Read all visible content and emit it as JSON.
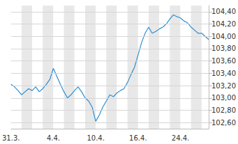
{
  "chart_data": {
    "type": "line",
    "color": "#2a8fd4",
    "grid": true,
    "categories": [
      "31.3.",
      null,
      null,
      null,
      null,
      null,
      null,
      null,
      null,
      null,
      null,
      null,
      "4.4.",
      null,
      null,
      null,
      null,
      null,
      null,
      null,
      null,
      null,
      null,
      null,
      "10.4.",
      null,
      null,
      null,
      null,
      null,
      null,
      null,
      null,
      null,
      null,
      null,
      "16.4.",
      null,
      null,
      null,
      null,
      null,
      null,
      null,
      null,
      null,
      null,
      null,
      "24.4.",
      null,
      null,
      null,
      null,
      null,
      null,
      null,
      null
    ],
    "values": [
      103.22,
      103.18,
      103.12,
      103.05,
      103.1,
      103.15,
      103.12,
      103.18,
      103.1,
      103.15,
      103.22,
      103.3,
      103.48,
      103.35,
      103.22,
      103.1,
      103.0,
      103.05,
      103.12,
      103.18,
      103.1,
      103.0,
      102.95,
      102.85,
      102.62,
      102.72,
      102.85,
      102.95,
      103.05,
      103.02,
      103.08,
      103.12,
      103.15,
      103.25,
      103.38,
      103.5,
      103.7,
      103.9,
      104.05,
      104.15,
      104.05,
      104.08,
      104.12,
      104.15,
      104.2,
      104.28,
      104.35,
      104.32,
      104.3,
      104.25,
      104.22,
      104.15,
      104.1,
      104.05,
      104.05,
      104.0,
      103.95
    ],
    "ylim": [
      102.5,
      104.5
    ],
    "yticks": [
      {
        "value": 102.6,
        "label": "102,60"
      },
      {
        "value": 102.8,
        "label": "102,80"
      },
      {
        "value": 103.0,
        "label": "103,00"
      },
      {
        "value": 103.2,
        "label": "103,20"
      },
      {
        "value": 103.4,
        "label": "103,40"
      },
      {
        "value": 103.6,
        "label": "103,60"
      },
      {
        "value": 103.8,
        "label": "103,80"
      },
      {
        "value": 104.0,
        "label": "104,00"
      },
      {
        "value": 104.2,
        "label": "104,20"
      },
      {
        "value": 104.4,
        "label": "104,40"
      }
    ]
  }
}
